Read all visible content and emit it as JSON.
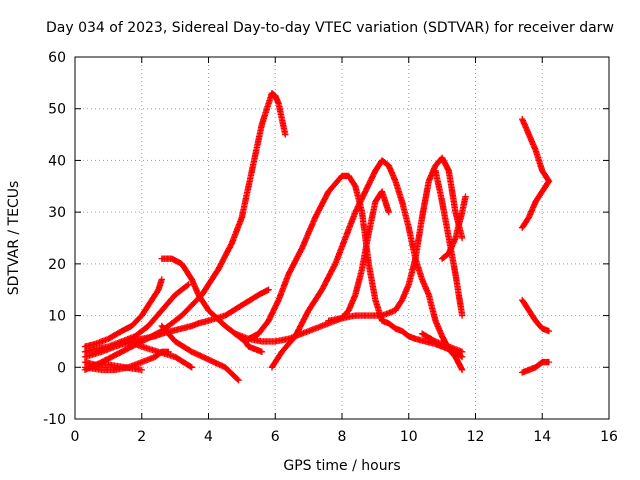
{
  "chart_data": {
    "type": "scatter",
    "title": "Day 034 of 2023, Sidereal Day-to-day VTEC variation (SDTVAR) for receiver darw",
    "xlabel": "GPS time / hours",
    "ylabel": "SDTVAR / TECUs",
    "xlim": [
      0,
      16
    ],
    "ylim": [
      -10,
      60
    ],
    "xticks": [
      0,
      2,
      4,
      6,
      8,
      10,
      12,
      14,
      16
    ],
    "yticks": [
      -10,
      0,
      10,
      20,
      30,
      40,
      50,
      60
    ],
    "grid": true,
    "marker": "+",
    "color": "#ff0000",
    "series": [
      {
        "name": "arc-1",
        "x": [
          0.3,
          0.6,
          1.0,
          1.4,
          1.7,
          2.0,
          2.2,
          2.5,
          2.6
        ],
        "y": [
          4,
          4.5,
          5.5,
          7,
          8,
          10,
          12,
          15,
          17
        ]
      },
      {
        "name": "arc-2",
        "x": [
          0.3,
          0.6,
          1.0,
          1.4,
          1.8,
          2.2,
          2.6,
          3.0,
          3.4
        ],
        "y": [
          3,
          3.5,
          4,
          5,
          6,
          8,
          11,
          14,
          16
        ]
      },
      {
        "name": "arc-3",
        "x": [
          0.3,
          0.8,
          1.4,
          2.0,
          2.6,
          3.2,
          3.8,
          4.3,
          4.7,
          5.0,
          5.2,
          5.4,
          5.6,
          5.8,
          5.9,
          6.0,
          6.1,
          6.2,
          6.3
        ],
        "y": [
          -0.5,
          1,
          3,
          5,
          7,
          10,
          14,
          19,
          24,
          29,
          35,
          41,
          47,
          51,
          53,
          52.5,
          51,
          48,
          45
        ]
      },
      {
        "name": "arc-4",
        "x": [
          0.3,
          0.8,
          1.2,
          1.7,
          2.0,
          2.4,
          2.6,
          2.9,
          3.2,
          3.5,
          3.7,
          4.0,
          4.5,
          5.0,
          5.5,
          5.8
        ],
        "y": [
          2,
          3,
          4,
          5,
          5.5,
          6,
          6.5,
          7,
          7.5,
          8,
          8.5,
          9,
          10,
          12,
          14,
          15
        ]
      },
      {
        "name": "arc-5",
        "x": [
          0.3,
          0.6,
          1.0,
          1.5,
          2.0
        ],
        "y": [
          1,
          0.5,
          0.5,
          0,
          -0.5
        ]
      },
      {
        "name": "arc-6",
        "x": [
          0.3,
          0.8,
          1.2,
          1.6,
          2.0,
          2.4,
          2.6,
          2.8
        ],
        "y": [
          0,
          -0.5,
          -0.5,
          0,
          1,
          2,
          3,
          3
        ]
      },
      {
        "name": "arc-7",
        "x": [
          1.6,
          2.0,
          2.5,
          3.0,
          3.5
        ],
        "y": [
          5,
          4,
          3,
          2,
          0
        ]
      },
      {
        "name": "arc-8",
        "x": [
          2.6,
          2.9,
          3.2,
          3.5,
          3.7,
          4.0,
          4.5,
          4.9,
          5.1,
          5.2,
          5.4,
          5.6
        ],
        "y": [
          21,
          21,
          20,
          17,
          14,
          11,
          8,
          6,
          5,
          4,
          3.5,
          3
        ]
      },
      {
        "name": "arc-9",
        "x": [
          2.6,
          3.0,
          3.5,
          4.0,
          4.5,
          4.9
        ],
        "y": [
          8,
          5,
          3,
          1.5,
          0,
          -2.5
        ]
      },
      {
        "name": "arc-10",
        "x": [
          4.8,
          5.2,
          5.6,
          6.0,
          6.4,
          6.8,
          7.2,
          7.6,
          8.0,
          8.2,
          8.4,
          8.6,
          8.8,
          9.0,
          9.2,
          9.4
        ],
        "y": [
          6.5,
          5.5,
          5,
          5,
          5.5,
          6.5,
          7.5,
          8.5,
          9.5,
          11,
          14,
          19,
          26,
          32,
          34,
          30
        ]
      },
      {
        "name": "arc-11",
        "x": [
          5.2,
          5.5,
          5.8,
          6.1,
          6.4,
          6.8,
          7.2,
          7.6,
          8.0,
          8.2,
          8.4,
          8.6,
          8.8,
          9.0,
          9.2,
          9.4,
          9.6,
          9.8,
          10.0,
          10.2,
          10.5,
          10.8,
          11.0,
          11.2,
          11.4,
          11.6
        ],
        "y": [
          5.5,
          6.5,
          9,
          13,
          18,
          23,
          29,
          34,
          37,
          37,
          35,
          30,
          20,
          13,
          9,
          8.5,
          7.5,
          7,
          6,
          5.5,
          5,
          4.5,
          4,
          3.5,
          3,
          2
        ]
      },
      {
        "name": "arc-12",
        "x": [
          5.9,
          6.2,
          6.6,
          7.0,
          7.4,
          7.8,
          8.1,
          8.4,
          8.7,
          9.0,
          9.2,
          9.4,
          9.6,
          9.8,
          10.0,
          10.2,
          10.4,
          10.6,
          10.8,
          11.0,
          11.2,
          11.4,
          11.6
        ],
        "y": [
          0,
          3,
          6,
          11,
          15,
          20,
          25,
          30,
          34,
          38,
          40,
          39,
          36,
          32,
          27,
          21,
          17,
          14,
          9,
          6,
          3.5,
          2,
          -0.5
        ]
      },
      {
        "name": "arc-13",
        "x": [
          7.6,
          8.0,
          8.4,
          8.8,
          9.2,
          9.6,
          9.8,
          10.0,
          10.2,
          10.4,
          10.6,
          10.8,
          11.0,
          11.2,
          11.4,
          11.6
        ],
        "y": [
          9,
          9.5,
          10,
          10,
          10,
          11,
          13,
          16,
          21,
          29,
          36,
          39,
          40.5,
          38,
          30,
          25
        ]
      },
      {
        "name": "arc-14",
        "x": [
          10.4,
          10.8,
          11.2,
          11.6
        ],
        "y": [
          6.5,
          5,
          4,
          3
        ]
      },
      {
        "name": "arc-15",
        "x": [
          11.0,
          11.2,
          11.4,
          11.6,
          11.7
        ],
        "y": [
          21,
          22,
          25,
          30,
          33
        ]
      },
      {
        "name": "arc-16",
        "x": [
          10.8,
          11.0,
          11.2,
          11.4,
          11.6
        ],
        "y": [
          38,
          32,
          25,
          18,
          10
        ]
      },
      {
        "name": "arc-17",
        "x": [
          13.4,
          13.6,
          13.8,
          14.0,
          14.2
        ],
        "y": [
          48,
          45,
          42,
          38,
          36
        ]
      },
      {
        "name": "arc-18",
        "x": [
          13.4,
          13.6,
          13.8,
          14.0,
          14.2
        ],
        "y": [
          27,
          29,
          32,
          34,
          36
        ]
      },
      {
        "name": "arc-19",
        "x": [
          13.4,
          13.6,
          13.8,
          14.0,
          14.2
        ],
        "y": [
          13,
          11,
          9,
          7.5,
          7
        ]
      },
      {
        "name": "arc-20",
        "x": [
          13.4,
          13.6,
          13.8,
          14.0,
          14.2
        ],
        "y": [
          -1,
          -0.5,
          0,
          1,
          1
        ]
      }
    ]
  }
}
